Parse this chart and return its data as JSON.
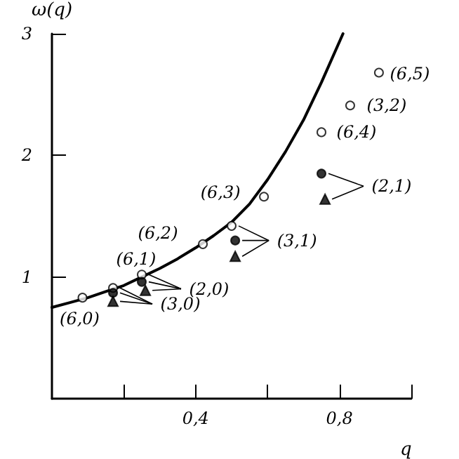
{
  "chart_data": {
    "type": "scatter",
    "xlabel": "q",
    "ylabel": "ω(q)",
    "xlim": [
      0,
      1
    ],
    "ylim": [
      0,
      3
    ],
    "xticks": [
      {
        "value": 0.2,
        "label": null
      },
      {
        "value": 0.4,
        "label": "0,4"
      },
      {
        "value": 0.6,
        "label": null
      },
      {
        "value": 0.8,
        "label": "0,8"
      },
      {
        "value": 1,
        "label": null
      }
    ],
    "yticks": [
      1,
      2,
      3
    ],
    "grid": false,
    "series": [
      {
        "type": "line",
        "color": "#000000",
        "marker": "none",
        "line_style": "solid",
        "x": [
          0,
          0.05,
          0.1,
          0.15,
          0.2,
          0.25,
          0.3,
          0.35,
          0.4,
          0.45,
          0.5,
          0.55,
          0.6,
          0.65,
          0.7,
          0.75,
          0.81
        ],
        "values": [
          0.75,
          0.79,
          0.83,
          0.88,
          0.93,
          1.0,
          1.07,
          1.15,
          1.24,
          1.34,
          1.45,
          1.6,
          1.8,
          2.03,
          2.29,
          2.6,
          3.0
        ]
      },
      {
        "color": "#ffffff",
        "marker": "circle",
        "x": [
          0.085,
          0.17,
          0.25,
          0.42,
          0.5,
          0.59,
          0.75,
          0.83,
          0.91
        ],
        "values": [
          0.83,
          0.91,
          1.02,
          1.27,
          1.42,
          1.66,
          2.19,
          2.41,
          2.68
        ]
      },
      {
        "color": "#000000",
        "marker": "circle",
        "x": [
          0.17,
          0.25,
          0.51,
          0.75
        ],
        "values": [
          0.87,
          0.96,
          1.3,
          1.85
        ]
      },
      {
        "color": "#000000",
        "marker": "triangle",
        "x": [
          0.17,
          0.26,
          0.51,
          0.76
        ],
        "values": [
          0.8,
          0.89,
          1.17,
          1.64
        ]
      }
    ],
    "annotations": [
      {
        "text": "(6,0)",
        "x": 0.085,
        "y": 0.83
      },
      {
        "text": "(6,1)",
        "x": 0.25,
        "y": 1.02
      },
      {
        "text": "(6,2)",
        "x": 0.42,
        "y": 1.27
      },
      {
        "text": "(6,3)",
        "x": 0.59,
        "y": 1.66
      },
      {
        "text": "(6,4)",
        "x": 0.75,
        "y": 2.19
      },
      {
        "text": "(3,2)",
        "x": 0.83,
        "y": 2.41
      },
      {
        "text": "(6,5)",
        "x": 0.91,
        "y": 2.68
      },
      {
        "text": "(2,1)",
        "x": 0.75,
        "y": 1.85
      },
      {
        "text": "(3,1)",
        "x": 0.51,
        "y": 1.3
      },
      {
        "text": "(2,0)",
        "x": 0.25,
        "y": 0.96
      },
      {
        "text": "(3,0)",
        "x": 0.17,
        "y": 0.87
      }
    ]
  }
}
